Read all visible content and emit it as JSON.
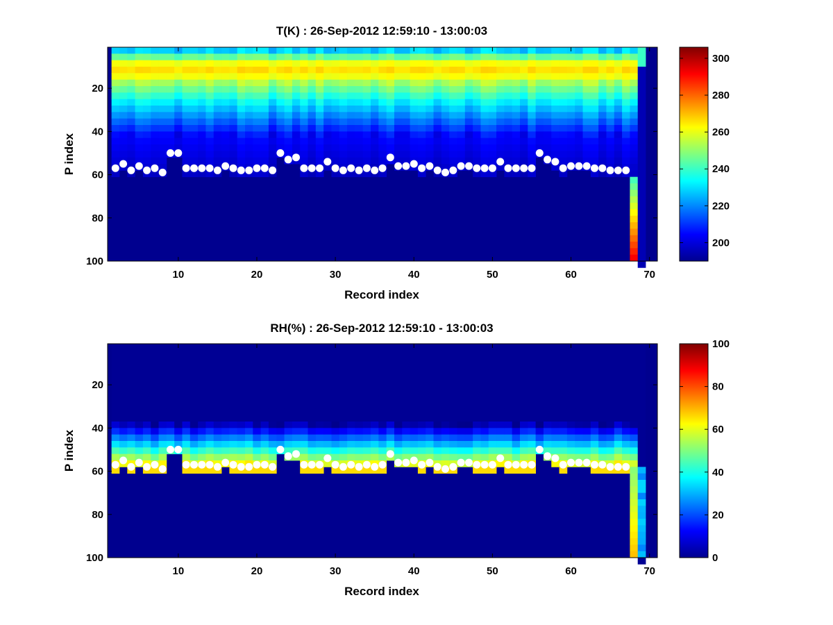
{
  "chart_data": [
    {
      "type": "heatmap",
      "title": "T(K) : 26-Sep-2012 12:59:10 - 13:00:03",
      "xlabel": "Record index",
      "ylabel": "P index",
      "xlim": [
        1,
        71
      ],
      "ylim": [
        100,
        1
      ],
      "x_ticks": [
        10,
        20,
        30,
        40,
        50,
        60,
        70
      ],
      "y_ticks": [
        20,
        40,
        60,
        80,
        100
      ],
      "colorbar": {
        "colormap": "jet",
        "range": [
          190,
          306
        ],
        "ticks": [
          200,
          220,
          240,
          260,
          280,
          300
        ]
      },
      "field_description": "Temperature per record (x) and pressure level (y). Warm band ~262-268 K near P 5-15, decreasing to ~195 K near P 45; no data below the surface markers except record 68.",
      "surface_marker": "white circles",
      "surface_records": [
        2,
        3,
        4,
        5,
        6,
        7,
        8,
        9,
        10,
        11,
        12,
        13,
        14,
        15,
        16,
        17,
        18,
        19,
        20,
        21,
        22,
        23,
        24,
        25,
        26,
        27,
        28,
        29,
        30,
        31,
        32,
        33,
        34,
        35,
        36,
        37,
        38,
        39,
        40,
        41,
        42,
        43,
        44,
        45,
        46,
        47,
        48,
        49,
        50,
        51,
        52,
        53,
        54,
        55,
        56,
        57,
        58,
        59,
        60,
        61,
        62,
        63,
        64,
        65,
        66,
        67
      ],
      "surface_p_index": [
        57,
        55,
        58,
        56,
        58,
        57,
        59,
        50,
        50,
        57,
        57,
        57,
        57,
        58,
        56,
        57,
        58,
        58,
        57,
        57,
        58,
        50,
        53,
        52,
        57,
        57,
        57,
        54,
        57,
        58,
        57,
        58,
        57,
        58,
        57,
        52,
        56,
        56,
        55,
        57,
        56,
        58,
        59,
        58,
        56,
        56,
        57,
        57,
        57,
        54,
        57,
        57,
        57,
        57,
        50,
        53,
        54,
        57,
        56,
        56,
        56,
        57,
        57,
        58,
        58,
        58
      ]
    },
    {
      "type": "heatmap",
      "title": "RH(%) : 26-Sep-2012 12:59:10 - 13:00:03",
      "xlabel": "Record index",
      "ylabel": "P index",
      "xlim": [
        1,
        71
      ],
      "ylim": [
        100,
        1
      ],
      "x_ticks": [
        10,
        20,
        30,
        40,
        50,
        60,
        70
      ],
      "y_ticks": [
        20,
        40,
        60,
        80,
        100
      ],
      "colorbar": {
        "colormap": "jet",
        "range": [
          0,
          100
        ],
        "ticks": [
          0,
          20,
          40,
          60,
          80,
          100
        ]
      },
      "field_description": "Relative humidity; ~0% aloft, rising through 20-50% near P 40-50 to ~60-65% just above the surface markers.",
      "surface_marker": "white circles",
      "surface_records": [
        2,
        3,
        4,
        5,
        6,
        7,
        8,
        9,
        10,
        11,
        12,
        13,
        14,
        15,
        16,
        17,
        18,
        19,
        20,
        21,
        22,
        23,
        24,
        25,
        26,
        27,
        28,
        29,
        30,
        31,
        32,
        33,
        34,
        35,
        36,
        37,
        38,
        39,
        40,
        41,
        42,
        43,
        44,
        45,
        46,
        47,
        48,
        49,
        50,
        51,
        52,
        53,
        54,
        55,
        56,
        57,
        58,
        59,
        60,
        61,
        62,
        63,
        64,
        65,
        66,
        67
      ],
      "surface_p_index": [
        57,
        55,
        58,
        56,
        58,
        57,
        59,
        50,
        50,
        57,
        57,
        57,
        57,
        58,
        56,
        57,
        58,
        58,
        57,
        57,
        58,
        50,
        53,
        52,
        57,
        57,
        57,
        54,
        57,
        58,
        57,
        58,
        57,
        58,
        57,
        52,
        56,
        56,
        55,
        57,
        56,
        58,
        59,
        58,
        56,
        56,
        57,
        57,
        57,
        54,
        57,
        57,
        57,
        57,
        50,
        53,
        54,
        57,
        56,
        56,
        56,
        57,
        57,
        58,
        58,
        58
      ]
    }
  ]
}
